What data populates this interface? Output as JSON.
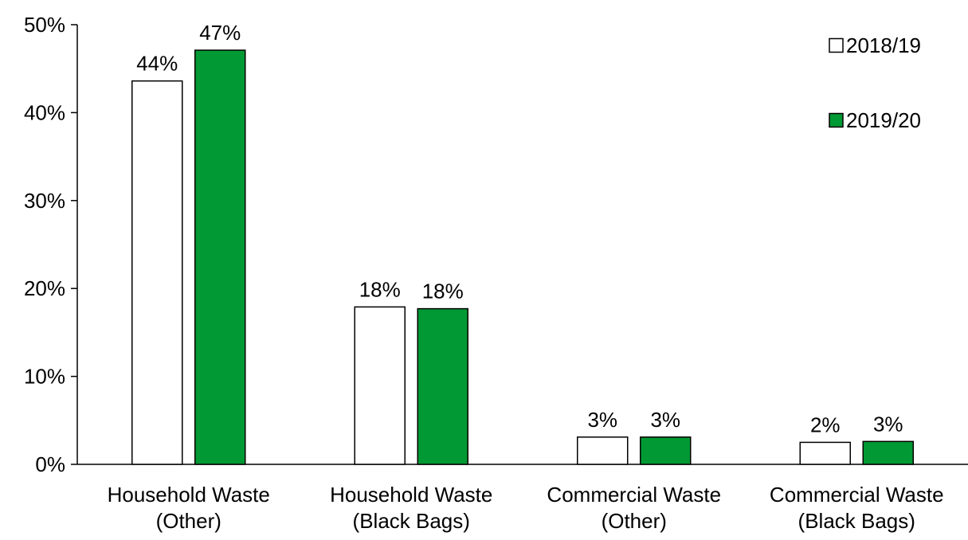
{
  "chart_data": {
    "type": "bar",
    "categories": [
      [
        "Household Waste",
        "(Other)"
      ],
      [
        "Household Waste",
        "(Black Bags)"
      ],
      [
        "Commercial Waste",
        "(Other)"
      ],
      [
        "Commercial Waste",
        "(Black Bags)"
      ]
    ],
    "series": [
      {
        "name": "2018/19",
        "color": "#ffffff",
        "values": [
          43.6,
          17.9,
          3.1,
          2.5
        ],
        "labels": [
          "44%",
          "18%",
          "3%",
          "2%"
        ]
      },
      {
        "name": "2019/20",
        "color": "#009933",
        "values": [
          47.1,
          17.7,
          3.1,
          2.6
        ],
        "labels": [
          "47%",
          "18%",
          "3%",
          "3%"
        ]
      }
    ],
    "ylim": [
      0,
      50
    ],
    "y_ticks": [
      0,
      10,
      20,
      30,
      40,
      50
    ],
    "y_tick_labels": [
      "0%",
      "10%",
      "20%",
      "30%",
      "40%",
      "50%"
    ],
    "legend_position": "top-right",
    "grid": false,
    "title": "",
    "xlabel": "",
    "ylabel": ""
  }
}
